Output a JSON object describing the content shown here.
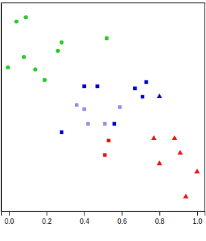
{
  "chart_data": {
    "type": "scatter",
    "xlim": [
      -0.04,
      1.04
    ],
    "xticks": [
      {
        "value": 0,
        "label": "0.0"
      },
      0.2,
      0.4,
      0.6,
      0.8,
      {
        "value": 1,
        "label": "1.0"
      }
    ],
    "ylim": [
      0,
      1
    ],
    "tick_labels": "x",
    "series": [
      {
        "color": "#22cc22",
        "marker": "circle",
        "x": [
          0.04,
          0.09,
          0.08,
          -0.005,
          0.14,
          0.19,
          0.26,
          0.28
        ],
        "values": [
          0.91,
          0.93,
          0.74,
          0.69,
          0.68,
          0.63,
          0.77,
          0.81
        ]
      },
      {
        "color": "#22cc22",
        "marker": "square",
        "x": [
          0.52
        ],
        "values": [
          0.83
        ]
      },
      {
        "color": "#0000cc",
        "marker": "square",
        "x": [
          0.4,
          0.47,
          0.67,
          0.73,
          0.71,
          0.28,
          0.56
        ],
        "values": [
          0.6,
          0.6,
          0.59,
          0.62,
          0.55,
          0.38,
          0.42
        ]
      },
      {
        "color": "#8f8fe8",
        "marker": "square",
        "x": [
          0.36,
          0.4,
          0.59,
          0.42,
          0.51
        ],
        "values": [
          0.51,
          0.49,
          0.5,
          0.42,
          0.42
        ]
      },
      {
        "color": "#0000cc",
        "marker": "triangle",
        "x": [
          0.8
        ],
        "values": [
          0.55
        ]
      },
      {
        "color": "#ee1111",
        "marker": "square",
        "x": [
          0.53,
          0.51
        ],
        "values": [
          0.34,
          0.27
        ]
      },
      {
        "color": "#ee1111",
        "marker": "triangle",
        "x": [
          0.77,
          0.88,
          0.91,
          0.8,
          1.0,
          0.94
        ],
        "values": [
          0.35,
          0.35,
          0.28,
          0.23,
          0.19,
          0.07
        ]
      }
    ]
  }
}
